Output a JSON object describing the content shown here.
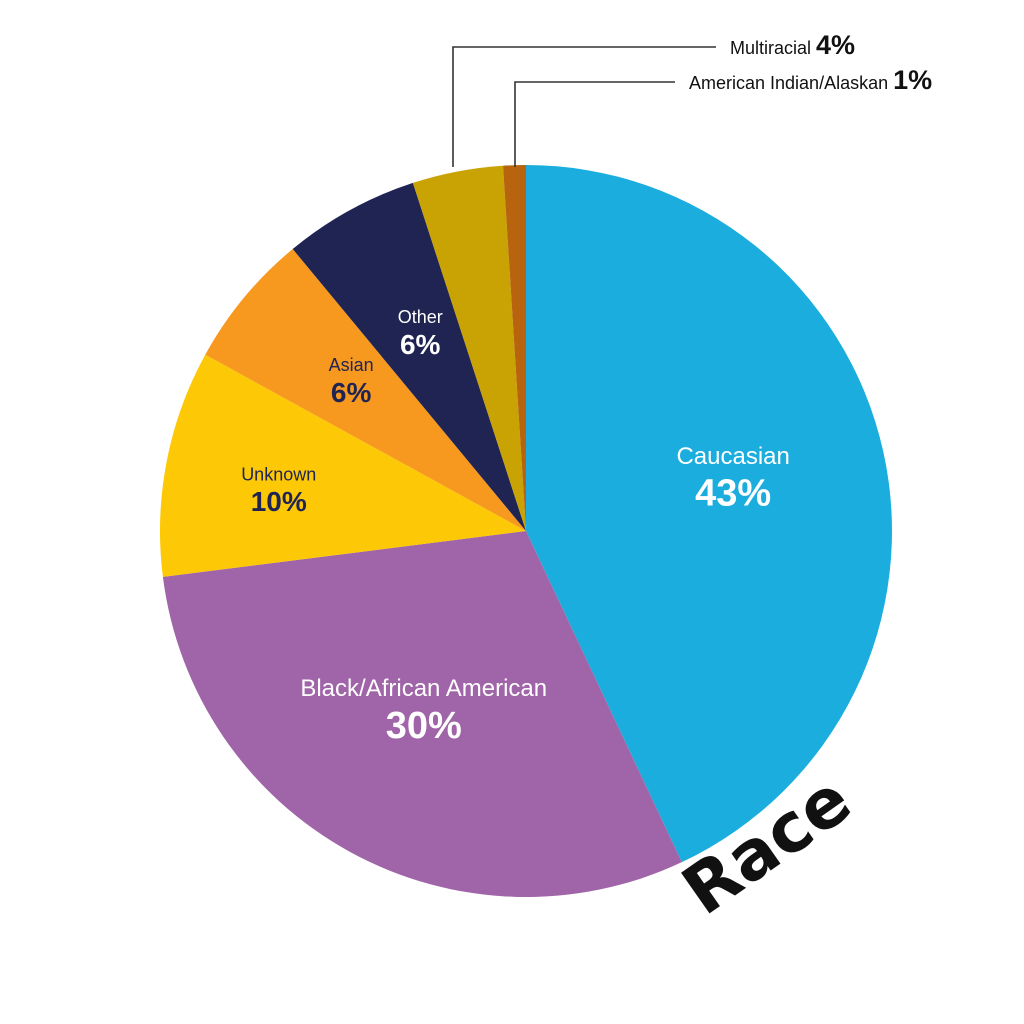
{
  "chart_data": {
    "type": "pie",
    "title": "Race",
    "slices": [
      {
        "name": "Caucasian",
        "value_label": "43%",
        "value": 43,
        "color": "#1BADDE"
      },
      {
        "name": "Black/African American",
        "value_label": "30%",
        "value": 30,
        "color": "#A064A8"
      },
      {
        "name": "Unknown",
        "value_label": "10%",
        "value": 10,
        "color": "#FDC805"
      },
      {
        "name": "Asian",
        "value_label": "6%",
        "value": 6,
        "color": "#F7991F"
      },
      {
        "name": "Other",
        "value_label": "6%",
        "value": 6,
        "color": "#1F2453"
      },
      {
        "name": "Multiracial",
        "value_label": "4%",
        "value": 4,
        "color": "#C9A204"
      },
      {
        "name": "American Indian/Alaskan",
        "value_label": "1%",
        "value": 1,
        "color": "#B8640F"
      }
    ]
  }
}
